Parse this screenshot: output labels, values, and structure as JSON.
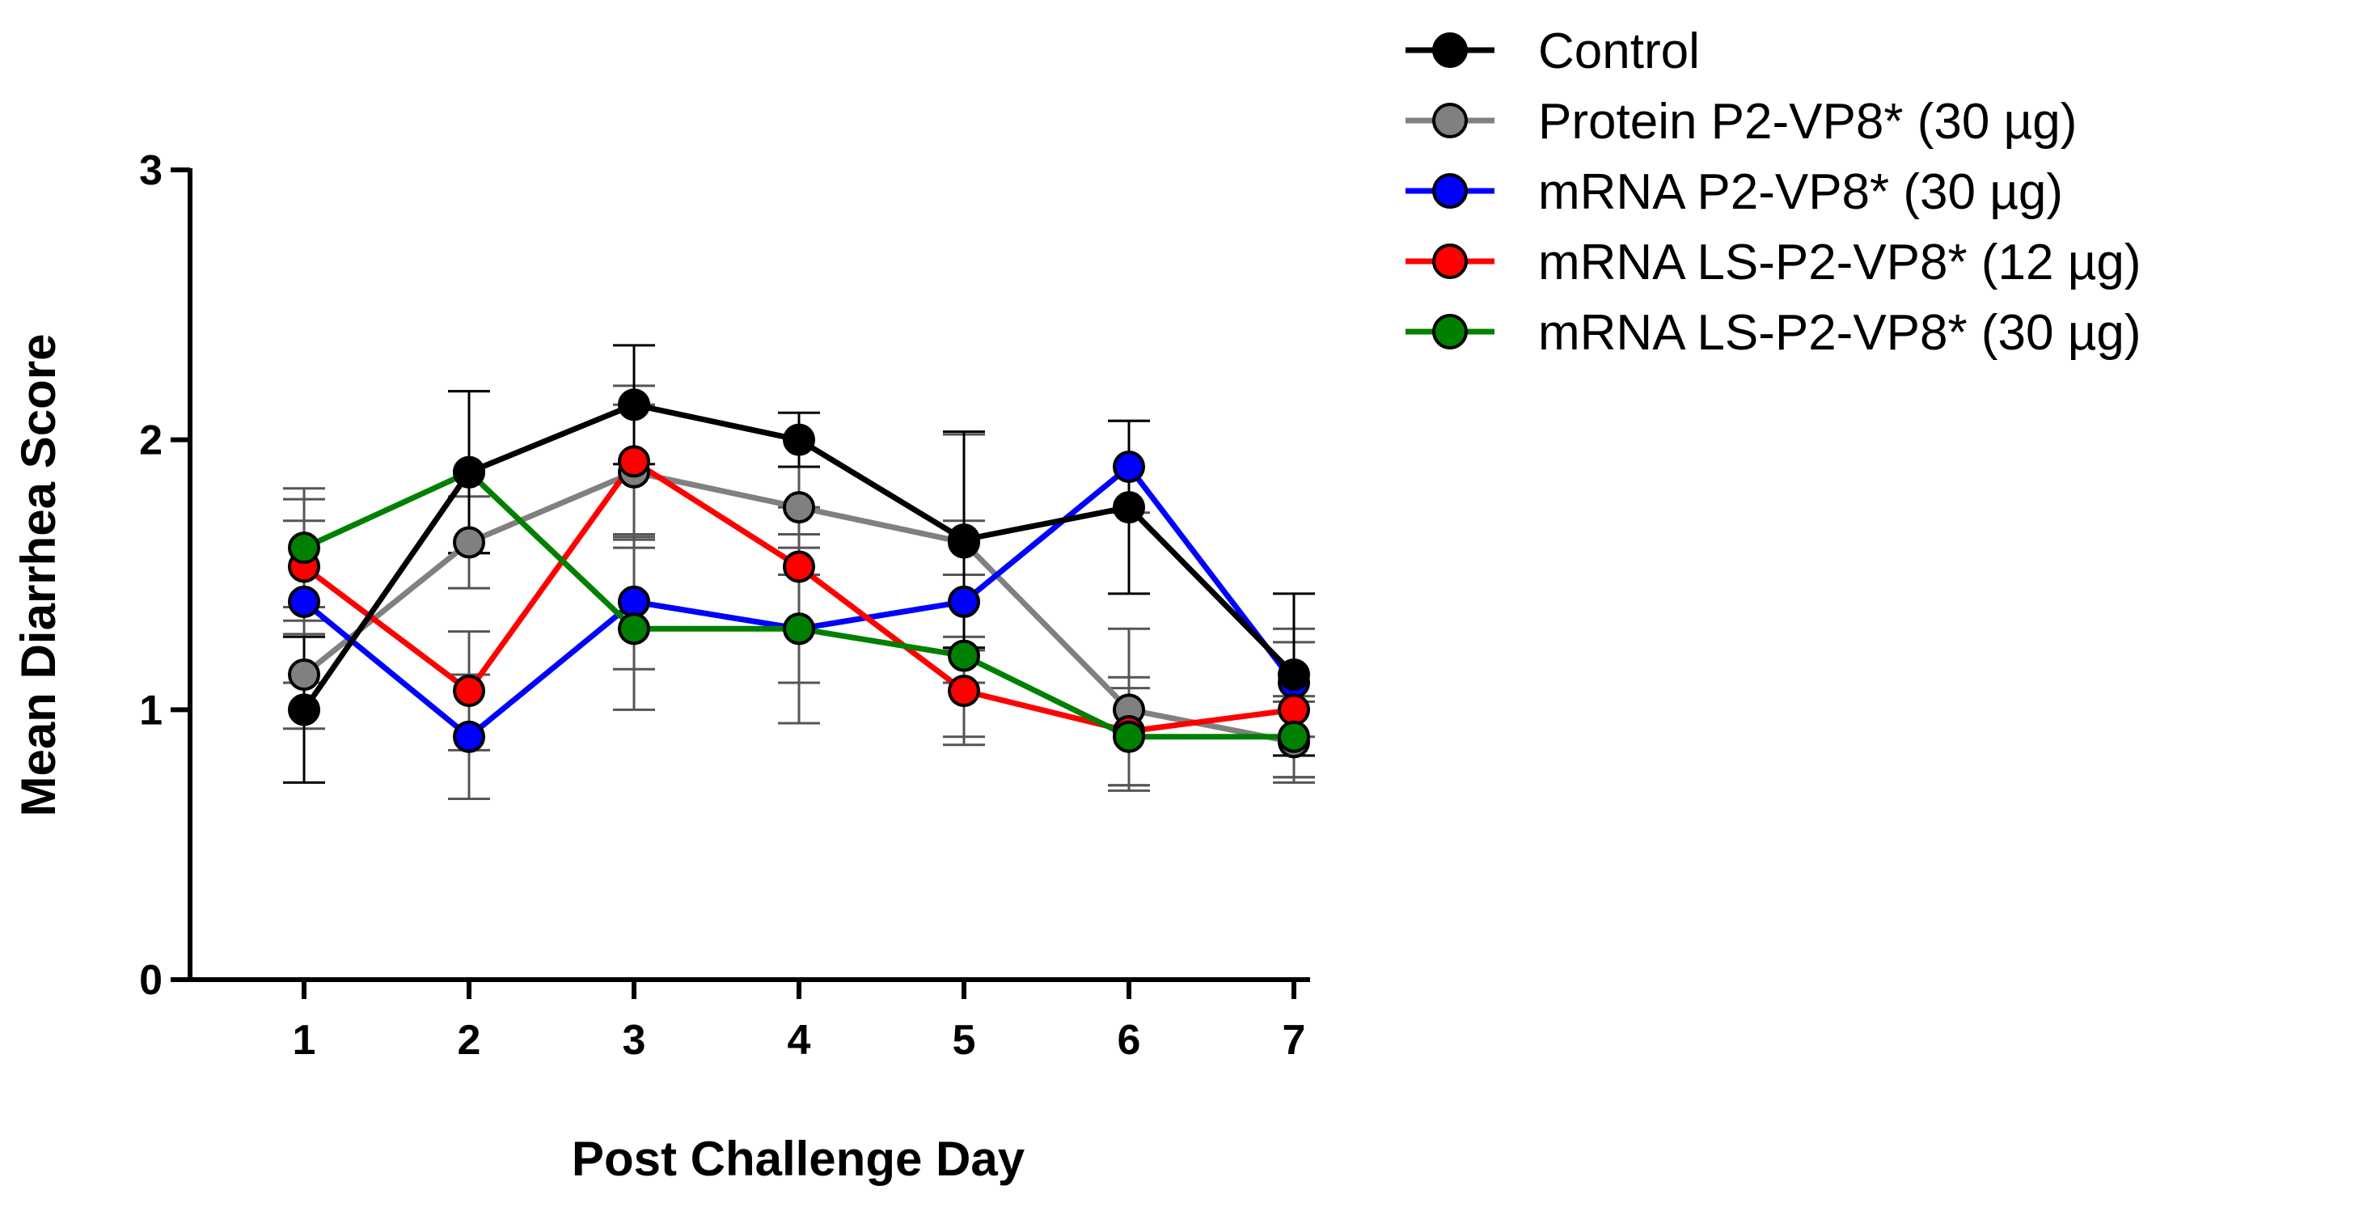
{
  "chart_data": {
    "type": "line",
    "title": "",
    "xlabel": "Post Challenge Day",
    "ylabel": "Mean Diarrhea Score",
    "x": [
      1,
      2,
      3,
      4,
      5,
      6,
      7
    ],
    "x_tick_labels": [
      "1",
      "2",
      "3",
      "4",
      "5",
      "6",
      "7"
    ],
    "ylim": [
      0,
      3
    ],
    "y_ticks": [
      0,
      1,
      2,
      3
    ],
    "y_tick_labels": [
      "0",
      "1",
      "2",
      "3"
    ],
    "grid": false,
    "legend_position": "top-right",
    "series": [
      {
        "name": "Protein P2-VP8* (30 µg)",
        "color": "#808080",
        "values": [
          1.13,
          1.62,
          1.88,
          1.75,
          1.62,
          1.0,
          0.88
        ],
        "errors": [
          0.2,
          0.17,
          0.25,
          0.15,
          0.4,
          0.3,
          0.15
        ]
      },
      {
        "name": "mRNA P2-VP8* (30 µg)",
        "color": "#0000ff",
        "values": [
          1.4,
          0.9,
          1.4,
          1.3,
          1.4,
          1.9,
          1.1
        ],
        "errors": [
          0.3,
          0.23,
          0.25,
          0.2,
          0.3,
          0.17,
          0.2
        ]
      },
      {
        "name": "mRNA LS-P2-VP8* (12 µg)",
        "color": "#ff0000",
        "values": [
          1.53,
          1.07,
          1.92,
          1.53,
          1.07,
          0.92,
          1.0
        ],
        "errors": [
          0.25,
          0.22,
          0.28,
          0.22,
          0.2,
          0.2,
          0.25
        ]
      },
      {
        "name": "mRNA LS-P2-VP8* (30 µg)",
        "color": "#008000",
        "values": [
          1.6,
          1.88,
          1.3,
          1.3,
          1.2,
          0.9,
          0.9
        ],
        "errors": [
          0.22,
          0.3,
          0.3,
          0.35,
          0.3,
          0.18,
          0.15
        ]
      },
      {
        "name": "Control",
        "color": "#000000",
        "values": [
          1.0,
          1.88,
          2.13,
          2.0,
          1.63,
          1.75,
          1.13
        ],
        "errors": [
          0.27,
          0.3,
          0.22,
          0.1,
          0.4,
          0.32,
          0.3
        ]
      }
    ],
    "legend_order": [
      "Control",
      "Protein P2-VP8* (30 µg)",
      "mRNA P2-VP8* (30 µg)",
      "mRNA LS-P2-VP8* (12 µg)",
      "mRNA LS-P2-VP8* (30 µg)"
    ]
  }
}
